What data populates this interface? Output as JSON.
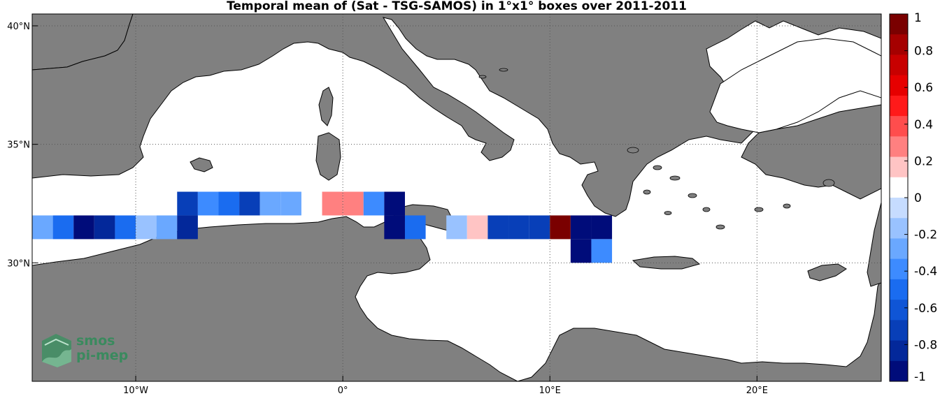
{
  "title": "Temporal mean of (Sat - TSG-SAMOS) in 1°x1° boxes over 2011-2011",
  "colors": {
    "land": "#808080",
    "sea": "#ffffff",
    "coast": "#000000",
    "grid": "#555555"
  },
  "map": {
    "lon_range": [
      -15,
      26
    ],
    "lat_range": [
      25,
      40.5
    ],
    "lon_ticks": [
      {
        "value": -10,
        "label": "10°W"
      },
      {
        "value": 0,
        "label": "0°"
      },
      {
        "value": 10,
        "label": "10°E"
      },
      {
        "value": 20,
        "label": "20°E"
      }
    ],
    "lat_ticks": [
      {
        "value": 40,
        "label": "40°N"
      },
      {
        "value": 35,
        "label": "35°N"
      },
      {
        "value": 30,
        "label": "30°N"
      }
    ],
    "gridlines": true
  },
  "colorbar": {
    "range": [
      -1,
      1
    ],
    "tick_labels": [
      "1",
      "0.8",
      "0.6",
      "0.4",
      "0.2",
      "0",
      "-0.2",
      "-0.4",
      "-0.6",
      "-0.8",
      "-1"
    ],
    "tick_values": [
      1,
      0.8,
      0.6,
      0.4,
      0.2,
      0,
      -0.2,
      -0.4,
      -0.6,
      -0.8,
      -1
    ],
    "colors_top_to_bottom": [
      "#7a0000",
      "#a50000",
      "#c80000",
      "#e60000",
      "#ff1a1a",
      "#ff4d4d",
      "#ff8080",
      "#ffc4c4",
      "#ffffff",
      "#c6dcff",
      "#99c2ff",
      "#6aa8ff",
      "#3d8bff",
      "#1a6cf0",
      "#0f55d6",
      "#083fb8",
      "#03289a",
      "#000c7a"
    ]
  },
  "chart_data": {
    "type": "heatmap",
    "title": "Temporal mean of (Sat - TSG-SAMOS) in 1°x1° boxes over 2011-2011",
    "value_range": [
      -1,
      1
    ],
    "cells": [
      {
        "lon": -14.5,
        "lat": 31.5,
        "value": -0.3
      },
      {
        "lon": -13.5,
        "lat": 31.5,
        "value": -0.55
      },
      {
        "lon": -12.5,
        "lat": 31.5,
        "value": -0.9
      },
      {
        "lon": -11.5,
        "lat": 31.5,
        "value": -0.8
      },
      {
        "lon": -10.5,
        "lat": 31.5,
        "value": -0.5
      },
      {
        "lon": -9.5,
        "lat": 31.5,
        "value": -0.15
      },
      {
        "lon": -8.5,
        "lat": 31.5,
        "value": -0.3
      },
      {
        "lon": -7.5,
        "lat": 31.5,
        "value": -0.8
      },
      {
        "lon": -7.5,
        "lat": 32.5,
        "value": -0.75
      },
      {
        "lon": -6.5,
        "lat": 32.5,
        "value": -0.4
      },
      {
        "lon": -5.5,
        "lat": 32.5,
        "value": -0.5
      },
      {
        "lon": -4.5,
        "lat": 32.5,
        "value": -0.75
      },
      {
        "lon": -3.5,
        "lat": 32.5,
        "value": -0.3
      },
      {
        "lon": -2.5,
        "lat": 32.5,
        "value": -0.3
      },
      {
        "lon": -0.5,
        "lat": 32.5,
        "value": 0.3
      },
      {
        "lon": 0.5,
        "lat": 32.5,
        "value": 0.3
      },
      {
        "lon": 1.5,
        "lat": 32.5,
        "value": -0.4
      },
      {
        "lon": 2.5,
        "lat": 32.5,
        "value": -0.95
      },
      {
        "lon": 2.5,
        "lat": 31.5,
        "value": -0.95
      },
      {
        "lon": 3.5,
        "lat": 31.5,
        "value": -0.55
      },
      {
        "lon": 5.5,
        "lat": 31.5,
        "value": -0.15
      },
      {
        "lon": 6.5,
        "lat": 31.5,
        "value": 0.15
      },
      {
        "lon": 7.5,
        "lat": 31.5,
        "value": -0.7
      },
      {
        "lon": 8.5,
        "lat": 31.5,
        "value": -0.7
      },
      {
        "lon": 9.5,
        "lat": 31.5,
        "value": -0.7
      },
      {
        "lon": 10.5,
        "lat": 31.5,
        "value": 0.95
      },
      {
        "lon": 11.5,
        "lat": 31.5,
        "value": -0.95
      },
      {
        "lon": 12.5,
        "lat": 31.5,
        "value": -0.95
      },
      {
        "lon": 11.5,
        "lat": 30.5,
        "value": -0.95
      },
      {
        "lon": 12.5,
        "lat": 30.5,
        "value": -0.4
      }
    ]
  },
  "logo": {
    "line1": "smos",
    "line2": "pi-mep"
  }
}
